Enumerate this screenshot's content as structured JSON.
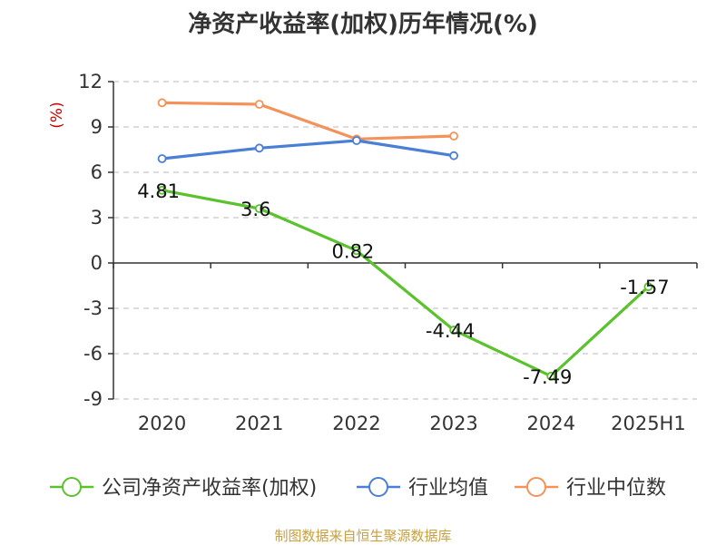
{
  "chart_data": {
    "type": "line",
    "title": "净资产收益率(加权)历年情况(%)",
    "ylabel": "(%)",
    "categories": [
      "2020",
      "2021",
      "2022",
      "2023",
      "2024",
      "2025H1"
    ],
    "yticks": [
      "12",
      "9",
      "6",
      "3",
      "0",
      "-3",
      "-6",
      "-9"
    ],
    "ylim": [
      -9,
      12
    ],
    "grid": true,
    "legend_position": "bottom",
    "series": [
      {
        "name": "公司净资产收益率(加权)",
        "color": "#5ac22d",
        "values": [
          4.81,
          3.6,
          0.82,
          -4.44,
          -7.49,
          -1.57
        ],
        "labels": [
          "4.81",
          "3.6",
          "0.82",
          "-4.44",
          "-7.49",
          "-1.57"
        ]
      },
      {
        "name": "行业均值",
        "color": "#4a7fd6",
        "values": [
          6.9,
          7.6,
          8.1,
          7.1,
          null,
          null
        ]
      },
      {
        "name": "行业中位数",
        "color": "#f5925a",
        "values": [
          10.6,
          10.5,
          8.2,
          8.4,
          null,
          null
        ]
      }
    ]
  },
  "source": "制图数据来自恒生聚源数据库"
}
